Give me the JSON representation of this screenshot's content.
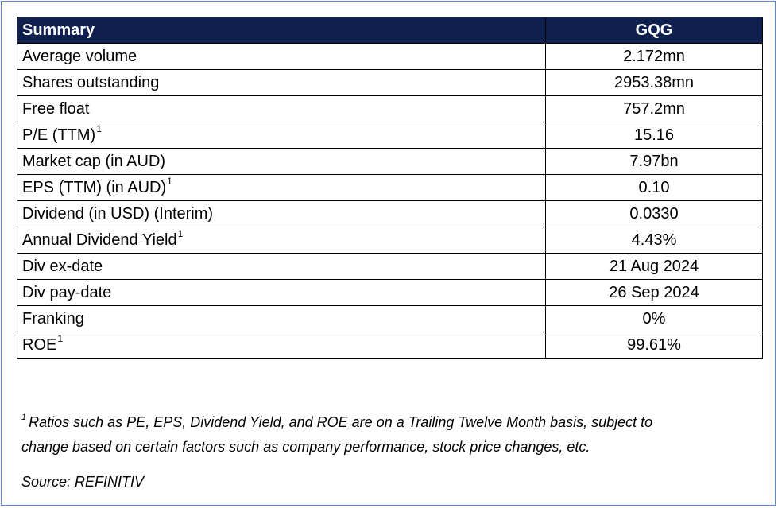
{
  "table": {
    "header": {
      "label": "Summary",
      "value": "GQG"
    },
    "rows": [
      {
        "label": "Average volume",
        "value": "2.172mn",
        "note": ""
      },
      {
        "label": "Shares outstanding",
        "value": "2953.38mn",
        "note": ""
      },
      {
        "label": "Free float",
        "value": "757.2mn",
        "note": ""
      },
      {
        "label": "P/E (TTM)",
        "value": "15.16",
        "note": "1"
      },
      {
        "label": "Market cap (in AUD)",
        "value": "7.97bn",
        "note": ""
      },
      {
        "label": "EPS (TTM) (in AUD)",
        "value": "0.10",
        "note": "1"
      },
      {
        "label": "Dividend (in USD) (Interim)",
        "value": "0.0330",
        "note": ""
      },
      {
        "label": "Annual Dividend Yield",
        "value": "4.43%",
        "note": "1"
      },
      {
        "label": "Div ex-date",
        "value": "21 Aug 2024",
        "note": ""
      },
      {
        "label": "Div pay-date",
        "value": "26 Sep 2024",
        "note": ""
      },
      {
        "label": "Franking",
        "value": "0%",
        "note": ""
      },
      {
        "label": "ROE",
        "value": "99.61%",
        "note": "1"
      }
    ]
  },
  "footnote": {
    "marker": "1",
    "line1": "Ratios such as PE, EPS, Dividend Yield, and ROE are on a Trailing Twelve Month basis, subject to",
    "line2": "change based on certain factors such as company performance, stock price changes, etc."
  },
  "source": "Source: REFINITIV"
}
